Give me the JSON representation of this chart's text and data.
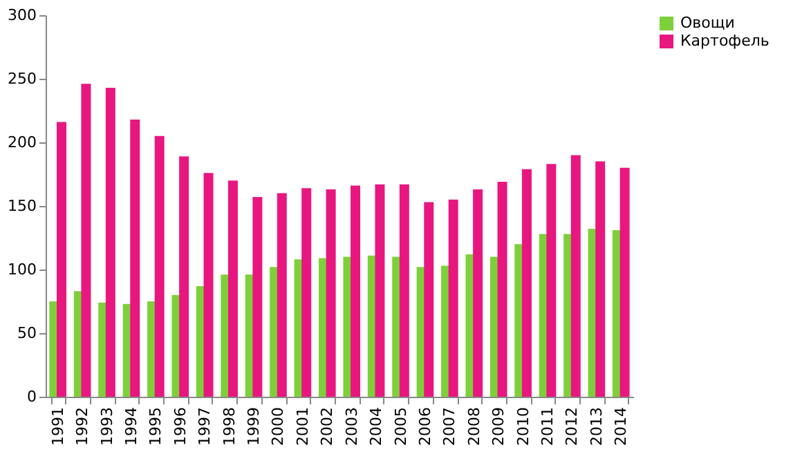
{
  "chart_data": {
    "type": "bar",
    "categories": [
      "1991",
      "1992",
      "1993",
      "1994",
      "1995",
      "1996",
      "1997",
      "1998",
      "1999",
      "2000",
      "2001",
      "2002",
      "2003",
      "2004",
      "2005",
      "2006",
      "2007",
      "2008",
      "2009",
      "2010",
      "2011",
      "2012",
      "2013",
      "2014"
    ],
    "series": [
      {
        "name": "Овощи",
        "color": "#7ed03a",
        "values": [
          75,
          83,
          74,
          73,
          75,
          80,
          87,
          96,
          96,
          102,
          108,
          109,
          110,
          111,
          110,
          102,
          103,
          112,
          110,
          120,
          128,
          128,
          132,
          131
        ]
      },
      {
        "name": "Картофель",
        "color": "#e8177f",
        "values": [
          216,
          246,
          243,
          218,
          205,
          189,
          176,
          170,
          157,
          160,
          164,
          163,
          166,
          167,
          167,
          153,
          155,
          163,
          169,
          179,
          183,
          190,
          185,
          180
        ]
      }
    ],
    "ylim": [
      0,
      300
    ],
    "yticks": [
      0,
      50,
      100,
      150,
      200,
      250,
      300
    ],
    "grid": false,
    "legend": "right"
  }
}
